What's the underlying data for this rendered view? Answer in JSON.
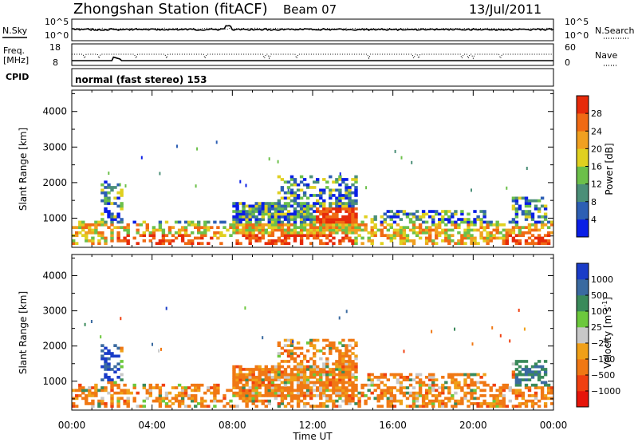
{
  "header": {
    "station": "Zhongshan Station (fitACF)",
    "beam": "Beam 07",
    "date": "13/Jul/2011"
  },
  "strip_noise": {
    "left_label": "N.Sky",
    "right_label": "N.Search",
    "left_ticks": [
      "10^5",
      "10^0"
    ],
    "right_ticks": [
      "10^5",
      "10^0"
    ]
  },
  "strip_freq": {
    "left_label_line1": "Freq.",
    "left_label_line2": "[MHz]",
    "right_label": "Nave",
    "left_ticks": [
      "18",
      "8"
    ],
    "right_ticks": [
      "60",
      "0"
    ]
  },
  "strip_cpid": {
    "label": "CPID",
    "text": "normal (fast stereo) 153"
  },
  "xaxis": {
    "label": "Time UT",
    "ticks": [
      "00:00",
      "04:00",
      "08:00",
      "12:00",
      "16:00",
      "20:00",
      "00:00"
    ]
  },
  "chart_data": [
    {
      "type": "heatmap",
      "name": "power",
      "ylabel": "Slant Range [km]",
      "yticks": [
        "1000",
        "2000",
        "3000",
        "4000"
      ],
      "ylim": [
        180,
        4600
      ],
      "xlim_hours": [
        0,
        24
      ],
      "colorbar_label": "Power [dB]",
      "colorbar_ticks": [
        "4",
        "8",
        "12",
        "16",
        "20",
        "24",
        "28"
      ],
      "colorbar_colors": [
        "#0a1ee6",
        "#2d5fb4",
        "#4b8f78",
        "#6cc04a",
        "#e0d020",
        "#f0a020",
        "#f06a14",
        "#e62a0a"
      ]
    },
    {
      "type": "heatmap",
      "name": "velocity",
      "ylabel": "Slant Range [km]",
      "yticks": [
        "1000",
        "2000",
        "3000",
        "4000"
      ],
      "ylim": [
        180,
        4600
      ],
      "xlim_hours": [
        0,
        24
      ],
      "colorbar_label": "Velocity [m s",
      "colorbar_label_sup": "-1",
      "colorbar_label_end": "]",
      "colorbar_ticks": [
        "1000",
        "500",
        "100",
        "25",
        "−25",
        "−100",
        "−500",
        "−1000"
      ],
      "colorbar_colors": [
        "#1a3cc8",
        "#3a6aa0",
        "#3a8a5a",
        "#6cc83c",
        "#c8c8c8",
        "#f0a018",
        "#f07814",
        "#f04010",
        "#e6140a"
      ]
    }
  ]
}
